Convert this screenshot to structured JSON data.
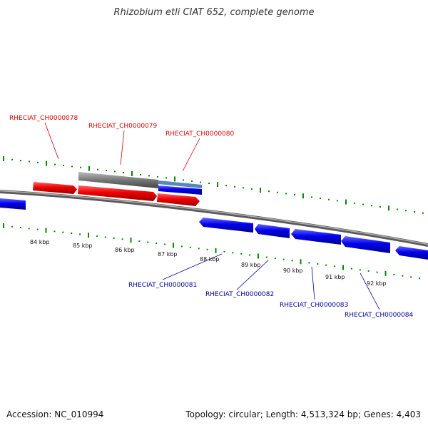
{
  "title": "Rhizobium etli CIAT 652, complete genome",
  "footer": {
    "accession": "Accession: NC_010994",
    "summary": "Topology: circular; Length: 4,513,324 bp; Genes: 4,403"
  },
  "ticks": [
    "84 kbp",
    "85 kbp",
    "86 kbp",
    "87 kbp",
    "88 kbp",
    "89 kbp",
    "90 kbp",
    "91 kbp",
    "92 kbp"
  ],
  "genes_top": [
    {
      "id": "RHECIAT_CH0000078",
      "color": "#dd0000"
    },
    {
      "id": "RHECIAT_CH0000079",
      "color": "#dd0000"
    },
    {
      "id": "RHECIAT_CH0000080",
      "color": "#dd0000"
    }
  ],
  "genes_bottom": [
    {
      "id": "RHECIAT_CH0000081",
      "color": "#000099"
    },
    {
      "id": "RHECIAT_CH0000082",
      "color": "#000099"
    },
    {
      "id": "RHECIAT_CH0000083",
      "color": "#000099"
    },
    {
      "id": "RHECIAT_CH0000084",
      "color": "#000099"
    }
  ],
  "colors": {
    "forward_gene": "#ee0000",
    "reverse_gene": "#0000ee",
    "backbone": "#888888",
    "tick": "#008800"
  }
}
